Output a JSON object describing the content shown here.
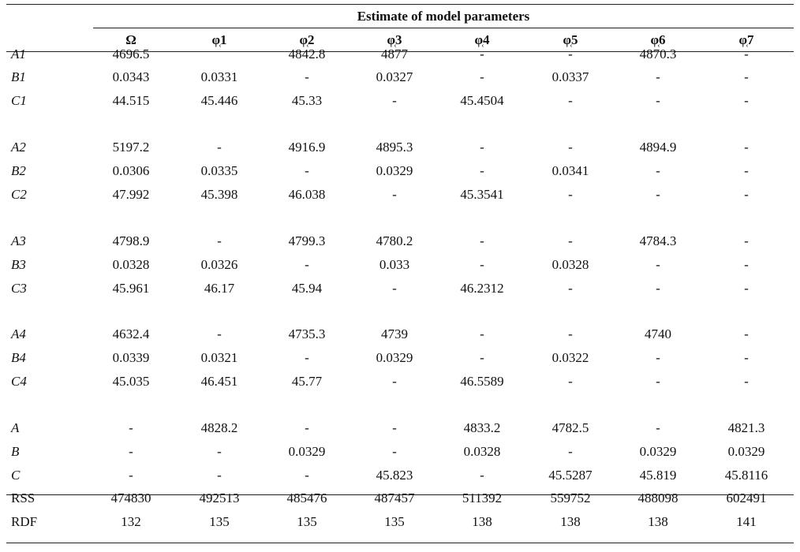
{
  "table": {
    "group_header": "Estimate of model parameters",
    "columns": [
      "Ω",
      "φ̜1",
      "φ̜2",
      "φ̜3",
      "φ̜4",
      "φ̜5",
      "φ̜6",
      "φ̜7"
    ],
    "rows": [
      {
        "label": "A1",
        "italic": true,
        "cells": [
          "4696.5",
          "",
          "4842.8",
          "4877",
          "-",
          "-",
          "4870.3",
          "-"
        ]
      },
      {
        "label": "B1",
        "italic": true,
        "cells": [
          "0.0343",
          "0.0331",
          "-",
          "0.0327",
          "-",
          "0.0337",
          "-",
          "-"
        ]
      },
      {
        "label": "C1",
        "italic": true,
        "cells": [
          "44.515",
          "45.446",
          "45.33",
          "-",
          "45.4504",
          "-",
          "-",
          "-"
        ]
      },
      {
        "label": "A2",
        "italic": true,
        "cells": [
          "5197.2",
          "-",
          "4916.9",
          "4895.3",
          "-",
          "-",
          "4894.9",
          "-"
        ]
      },
      {
        "label": "B2",
        "italic": true,
        "cells": [
          "0.0306",
          "0.0335",
          "-",
          "0.0329",
          "-",
          "0.0341",
          "-",
          "-"
        ]
      },
      {
        "label": "C2",
        "italic": true,
        "cells": [
          "47.992",
          "45.398",
          "46.038",
          "-",
          "45.3541",
          "-",
          "-",
          "-"
        ]
      },
      {
        "label": "A3",
        "italic": true,
        "cells": [
          "4798.9",
          "-",
          "4799.3",
          "4780.2",
          "-",
          "-",
          "4784.3",
          "-"
        ]
      },
      {
        "label": "B3",
        "italic": true,
        "cells": [
          "0.0328",
          "0.0326",
          "-",
          "0.033",
          "-",
          "0.0328",
          "-",
          "-"
        ]
      },
      {
        "label": "C3",
        "italic": true,
        "cells": [
          "45.961",
          "46.17",
          "45.94",
          "-",
          "46.2312",
          "-",
          "-",
          "-"
        ]
      },
      {
        "label": "A4",
        "italic": true,
        "cells": [
          "4632.4",
          "-",
          "4735.3",
          "4739",
          "-",
          "-",
          "4740",
          "-"
        ]
      },
      {
        "label": "B4",
        "italic": true,
        "cells": [
          "0.0339",
          "0.0321",
          "-",
          "0.0329",
          "-",
          "0.0322",
          "-",
          "-"
        ]
      },
      {
        "label": "C4",
        "italic": true,
        "cells": [
          "45.035",
          "46.451",
          "45.77",
          "-",
          "46.5589",
          "-",
          "-",
          "-"
        ]
      },
      {
        "label": "A",
        "italic": true,
        "cells": [
          "-",
          "4828.2",
          "-",
          "-",
          "4833.2",
          "4782.5",
          "-",
          "4821.3"
        ]
      },
      {
        "label": "B",
        "italic": true,
        "cells": [
          "-",
          "-",
          "0.0329",
          "-",
          "0.0328",
          "-",
          "0.0329",
          "0.0329"
        ]
      },
      {
        "label": "C",
        "italic": true,
        "cells": [
          "-",
          "-",
          "-",
          "45.823",
          "-",
          "45.5287",
          "45.819",
          "45.8116"
        ]
      },
      {
        "label": "RSS",
        "italic": false,
        "cells": [
          "474830",
          "492513",
          "485476",
          "487457",
          "511392",
          "559752",
          "488098",
          "602491"
        ]
      },
      {
        "label": "RDF",
        "italic": false,
        "cells": [
          "132",
          "135",
          "135",
          "135",
          "138",
          "138",
          "138",
          "141"
        ]
      }
    ]
  }
}
